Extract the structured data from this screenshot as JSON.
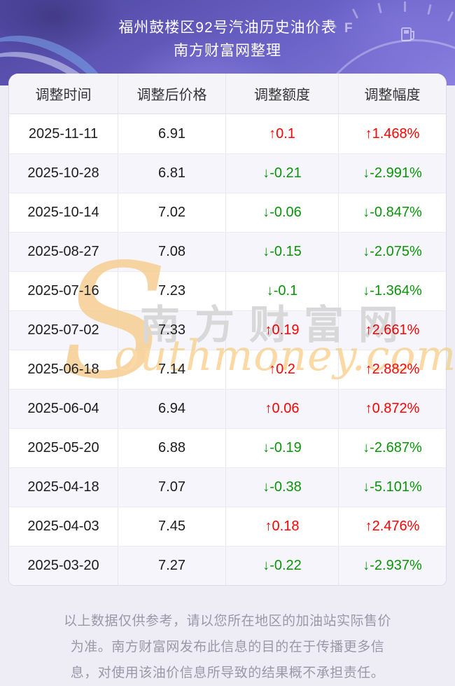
{
  "header": {
    "title": "福州鼓楼区92号汽油历史油价表",
    "subtitle": "南方财富网整理",
    "gauge_label": "F"
  },
  "table": {
    "columns": [
      "调整时间",
      "调整后价格",
      "调整额度",
      "调整幅度"
    ],
    "rows": [
      {
        "date": "2025-11-11",
        "price": "6.91",
        "change": "↑0.1",
        "percent": "↑1.468%",
        "dir": "up"
      },
      {
        "date": "2025-10-28",
        "price": "6.81",
        "change": "↓-0.21",
        "percent": "↓-2.991%",
        "dir": "down"
      },
      {
        "date": "2025-10-14",
        "price": "7.02",
        "change": "↓-0.06",
        "percent": "↓-0.847%",
        "dir": "down"
      },
      {
        "date": "2025-08-27",
        "price": "7.08",
        "change": "↓-0.15",
        "percent": "↓-2.075%",
        "dir": "down"
      },
      {
        "date": "2025-07-16",
        "price": "7.23",
        "change": "↓-0.1",
        "percent": "↓-1.364%",
        "dir": "down"
      },
      {
        "date": "2025-07-02",
        "price": "7.33",
        "change": "↑0.19",
        "percent": "↑2.661%",
        "dir": "up"
      },
      {
        "date": "2025-06-18",
        "price": "7.14",
        "change": "↑0.2",
        "percent": "↑2.882%",
        "dir": "up"
      },
      {
        "date": "2025-06-04",
        "price": "6.94",
        "change": "↑0.06",
        "percent": "↑0.872%",
        "dir": "up"
      },
      {
        "date": "2025-05-20",
        "price": "6.88",
        "change": "↓-0.19",
        "percent": "↓-2.687%",
        "dir": "down"
      },
      {
        "date": "2025-04-18",
        "price": "7.07",
        "change": "↓-0.38",
        "percent": "↓-5.101%",
        "dir": "down"
      },
      {
        "date": "2025-04-03",
        "price": "7.45",
        "change": "↑0.18",
        "percent": "↑2.476%",
        "dir": "up"
      },
      {
        "date": "2025-03-20",
        "price": "7.27",
        "change": "↓-0.22",
        "percent": "↓-2.937%",
        "dir": "down"
      }
    ]
  },
  "watermark": {
    "initial": "S",
    "cn": "南方财富网",
    "en": "outhmoney.com"
  },
  "footer": {
    "lines": [
      "以上数据仅供参考，请以您所在地区的加油站实际售价",
      "为准。南方财富网发布此信息的目的在于传播更多信",
      "息，对使用该油价信息所导致的结果概不承担责任。"
    ]
  },
  "colors": {
    "up_red": "#fe0101",
    "down_green": "#0a9408",
    "header_purple": "#6a61c6",
    "page_background": "#eeedf6"
  },
  "chart_data": {
    "type": "table",
    "title": "福州鼓楼区92号汽油历史油价表",
    "subtitle": "南方财富网整理",
    "columns": [
      "调整时间",
      "调整后价格",
      "调整额度",
      "调整幅度"
    ],
    "rows": [
      [
        "2025-11-11",
        "6.91",
        "↑0.1",
        "↑1.468%"
      ],
      [
        "2025-10-28",
        "6.81",
        "↓-0.21",
        "↓-2.991%"
      ],
      [
        "2025-10-14",
        "7.02",
        "↓-0.06",
        "↓-0.847%"
      ],
      [
        "2025-08-27",
        "7.08",
        "↓-0.15",
        "↓-2.075%"
      ],
      [
        "2025-07-16",
        "7.23",
        "↓-0.1",
        "↓-1.364%"
      ],
      [
        "2025-07-02",
        "7.33",
        "↑0.19",
        "↑2.661%"
      ],
      [
        "2025-06-18",
        "7.14",
        "↑0.2",
        "↑2.882%"
      ],
      [
        "2025-06-04",
        "6.94",
        "↑0.06",
        "↑0.872%"
      ],
      [
        "2025-05-20",
        "6.88",
        "↓-0.19",
        "↓-2.687%"
      ],
      [
        "2025-04-18",
        "7.07",
        "↓-0.38",
        "↓-5.101%"
      ],
      [
        "2025-04-03",
        "7.45",
        "↑0.18",
        "↑2.476%"
      ],
      [
        "2025-03-20",
        "7.27",
        "↓-0.22",
        "↓-2.937%"
      ]
    ]
  }
}
